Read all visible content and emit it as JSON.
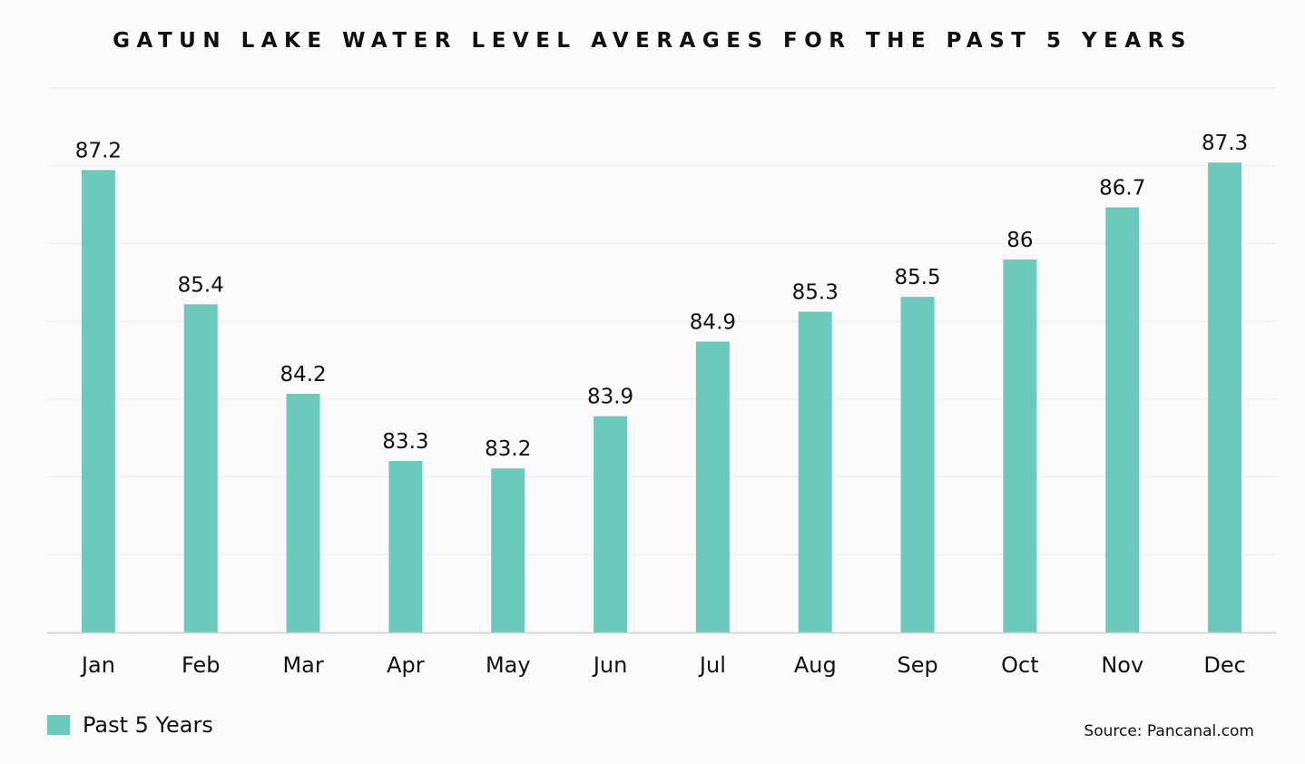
{
  "colors": {
    "bar": "#6ccabd",
    "grid": "#ececec",
    "axis": "#cfcfcf",
    "text": "#111111"
  },
  "chart_data": {
    "type": "bar",
    "title": "GATUN LAKE WATER LEVEL AVERAGES FOR THE PAST 5 YEARS",
    "categories": [
      "Jan",
      "Feb",
      "Mar",
      "Apr",
      "May",
      "Jun",
      "Jul",
      "Aug",
      "Sep",
      "Oct",
      "Nov",
      "Dec"
    ],
    "series": [
      {
        "name": "Past 5 Years",
        "values": [
          87.2,
          85.4,
          84.2,
          83.3,
          83.2,
          83.9,
          84.9,
          85.3,
          85.5,
          86,
          86.7,
          87.3
        ],
        "labels": [
          "87.2",
          "85.4",
          "84.2",
          "83.3",
          "83.2",
          "83.9",
          "84.9",
          "85.3",
          "85.5",
          "86",
          "86.7",
          "87.3"
        ]
      }
    ],
    "ylim": [
      81,
      88.3
    ],
    "grid": true,
    "legend": "bottom-left"
  },
  "source": "Source: Pancanal.com"
}
